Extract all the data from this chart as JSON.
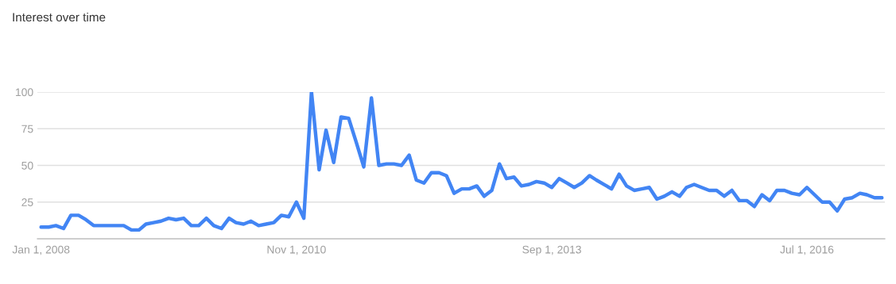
{
  "chart_data": {
    "type": "line",
    "title": "Interest over time",
    "x": [
      "2008-01",
      "2008-02",
      "2008-03",
      "2008-04",
      "2008-05",
      "2008-06",
      "2008-07",
      "2008-08",
      "2008-09",
      "2008-10",
      "2008-11",
      "2008-12",
      "2009-01",
      "2009-02",
      "2009-03",
      "2009-04",
      "2009-05",
      "2009-06",
      "2009-07",
      "2009-08",
      "2009-09",
      "2009-10",
      "2009-11",
      "2009-12",
      "2010-01",
      "2010-02",
      "2010-03",
      "2010-04",
      "2010-05",
      "2010-06",
      "2010-07",
      "2010-08",
      "2010-09",
      "2010-10",
      "2010-11",
      "2010-12",
      "2011-01",
      "2011-02",
      "2011-03",
      "2011-04",
      "2011-05",
      "2011-06",
      "2011-07",
      "2011-08",
      "2011-09",
      "2011-10",
      "2011-11",
      "2011-12",
      "2012-01",
      "2012-02",
      "2012-03",
      "2012-04",
      "2012-05",
      "2012-06",
      "2012-07",
      "2012-08",
      "2012-09",
      "2012-10",
      "2012-11",
      "2012-12",
      "2013-01",
      "2013-02",
      "2013-03",
      "2013-04",
      "2013-05",
      "2013-06",
      "2013-07",
      "2013-08",
      "2013-09",
      "2013-10",
      "2013-11",
      "2013-12",
      "2014-01",
      "2014-02",
      "2014-03",
      "2014-04",
      "2014-05",
      "2014-06",
      "2014-07",
      "2014-08",
      "2014-09",
      "2014-10",
      "2014-11",
      "2014-12",
      "2015-01",
      "2015-02",
      "2015-03",
      "2015-04",
      "2015-05",
      "2015-06",
      "2015-07",
      "2015-08",
      "2015-09",
      "2015-10",
      "2015-11",
      "2015-12",
      "2016-01",
      "2016-02",
      "2016-03",
      "2016-04",
      "2016-05",
      "2016-06",
      "2016-07",
      "2016-08",
      "2016-09",
      "2016-10",
      "2016-11",
      "2016-12",
      "2017-01",
      "2017-02",
      "2017-03",
      "2017-04",
      "2017-05"
    ],
    "series": [
      {
        "color": "#4285f4",
        "values": [
          8,
          8,
          9,
          7,
          16,
          16,
          13,
          9,
          9,
          9,
          9,
          9,
          6,
          6,
          10,
          11,
          12,
          14,
          13,
          14,
          9,
          9,
          14,
          9,
          7,
          14,
          11,
          10,
          12,
          9,
          10,
          11,
          16,
          15,
          25,
          14,
          100,
          47,
          74,
          52,
          83,
          82,
          66,
          49,
          96,
          50,
          51,
          51,
          50,
          57,
          40,
          38,
          45,
          45,
          43,
          31,
          34,
          34,
          36,
          29,
          33,
          51,
          41,
          42,
          36,
          37,
          39,
          38,
          35,
          41,
          38,
          35,
          38,
          43,
          40,
          37,
          34,
          44,
          36,
          33,
          34,
          35,
          27,
          29,
          32,
          29,
          35,
          37,
          35,
          33,
          33,
          29,
          33,
          26,
          26,
          22,
          30,
          26,
          33,
          33,
          31,
          30,
          35,
          30,
          25,
          25,
          19,
          27,
          28,
          31,
          30,
          28,
          28
        ]
      }
    ],
    "xlim": [
      "2007-12-17",
      "2017-05-13"
    ],
    "xticks": [
      {
        "value": "2008-01-01",
        "label": "Jan 1, 2008"
      },
      {
        "value": "2010-11-01",
        "label": "Nov 1, 2010"
      },
      {
        "value": "2013-09-01",
        "label": "Sep 1, 2013"
      },
      {
        "value": "2016-07-01",
        "label": "Jul 1, 2016"
      }
    ],
    "ylim": [
      0,
      100
    ],
    "yticks": [
      25,
      50,
      75,
      100
    ],
    "grid": "y",
    "marker": "none",
    "line_style": "solid"
  }
}
